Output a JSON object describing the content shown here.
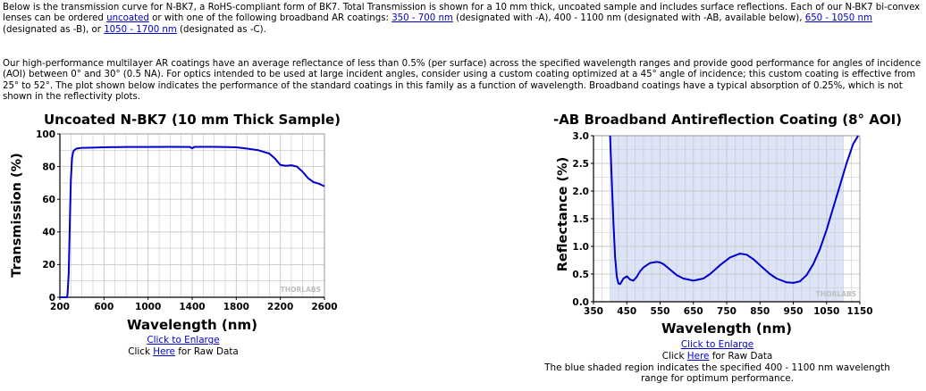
{
  "intro": {
    "p1_a": "Below is the transmission curve for N-BK7, a RoHS-compliant form of BK7. Total Transmission is shown for a 10 mm thick, uncoated sample and includes surface reflections. Each of our N-BK7 bi-convex lenses can be ordered ",
    "link_uncoated": "uncoated",
    "p1_b": " or with one of the following broadband AR coatings: ",
    "link_350_700": "350 - 700 nm",
    "p1_c": " (designated with -A), 400 - 1100 nm (designated with -AB, available below), ",
    "link_650_1050": "650 - 1050 nm",
    "p1_d": " (designated as -B), or ",
    "link_1050_1700": "1050 - 1700 nm",
    "p1_e": " (designated as -C).",
    "p2": "Our high-performance multilayer AR coatings have an average reflectance of less than 0.5% (per surface) across the specified wavelength ranges and provide good performance for angles of incidence (AOI) between 0° and 30° (0.5 NA). For optics intended to be used at large incident angles, consider using a custom coating optimized at a 45° angle of incidence; this custom coating is effective from 25° to 52°. The plot shown below indicates the performance of the standard coatings in this family as a function of wavelength. Broadband coatings have a typical absorption of 0.25%, which is not shown in the reflectivity plots."
  },
  "left": {
    "enlarge_link": "Click to Enlarge",
    "raw_prefix": "Click ",
    "raw_link": "Here",
    "raw_suffix": " for Raw Data"
  },
  "right": {
    "enlarge_link": "Click to Enlarge",
    "raw_prefix": "Click ",
    "raw_link": "Here",
    "raw_suffix": " for Raw Data",
    "note": "The blue shaded region indicates the specified 400 - 1100 nm wavelength range for optimum performance."
  },
  "colors": {
    "curve": "#0000cc",
    "shade": "#dde4f7",
    "grid": "#c8c8c8",
    "link": "#0000cc"
  },
  "chart_data": [
    {
      "type": "line",
      "title": "Uncoated N-BK7 (10 mm Thick Sample)",
      "xlabel": "Wavelength (nm)",
      "ylabel": "Transmission (%)",
      "xlim": [
        200,
        2600
      ],
      "ylim": [
        0,
        100
      ],
      "xticks": [
        200,
        600,
        1000,
        1400,
        1800,
        2200,
        2600
      ],
      "yticks": [
        0,
        20,
        40,
        60,
        80,
        100
      ],
      "xtick_labels": [
        "200",
        "600",
        "1000",
        "1400",
        "1800",
        "2200",
        "2600"
      ],
      "ytick_labels": [
        "0",
        "20",
        "40",
        "60",
        "80",
        "100"
      ],
      "grid": true,
      "watermark": "THORLABS",
      "series": [
        {
          "x": [
            200,
            250,
            265,
            270,
            280,
            290,
            300,
            310,
            320,
            330,
            350,
            380,
            400,
            500,
            600,
            800,
            1000,
            1200,
            1380,
            1400,
            1420,
            1600,
            1800,
            1900,
            2000,
            2100,
            2150,
            2200,
            2250,
            2300,
            2350,
            2400,
            2450,
            2500,
            2550,
            2600
          ],
          "y": [
            0,
            0,
            0,
            2,
            15,
            45,
            72,
            85,
            89,
            90,
            91,
            91.3,
            91.5,
            91.6,
            91.8,
            92,
            92,
            92.1,
            92,
            91.2,
            92.1,
            92.1,
            91.8,
            91,
            90,
            88,
            85,
            81,
            80.5,
            80.8,
            80,
            77,
            73,
            70.5,
            69.5,
            68
          ]
        }
      ]
    },
    {
      "type": "line",
      "title": "-AB Broadband Antireflection Coating (8° AOI)",
      "xlabel": "Wavelength (nm)",
      "ylabel": "Reflectance (%)",
      "xlim": [
        350,
        1150
      ],
      "ylim": [
        0,
        3
      ],
      "xticks": [
        350,
        450,
        550,
        650,
        750,
        850,
        950,
        1050,
        1150
      ],
      "yticks": [
        0,
        0.5,
        1,
        1.5,
        2,
        2.5,
        3
      ],
      "xtick_labels": [
        "350",
        "450",
        "550",
        "650",
        "750",
        "850",
        "950",
        "1050",
        "1150"
      ],
      "ytick_labels": [
        "0.0",
        "0.5",
        "1.0",
        "1.5",
        "2.0",
        "2.5",
        "3.0"
      ],
      "shaded_region": [
        400,
        1100
      ],
      "grid": true,
      "watermark": "THORLABS",
      "series": [
        {
          "x": [
            400,
            403,
            406,
            410,
            415,
            420,
            425,
            430,
            440,
            450,
            460,
            470,
            480,
            490,
            500,
            520,
            540,
            550,
            560,
            580,
            600,
            620,
            650,
            680,
            700,
            730,
            760,
            790,
            810,
            830,
            850,
            880,
            900,
            930,
            950,
            970,
            990,
            1010,
            1030,
            1050,
            1070,
            1090,
            1110,
            1130,
            1145
          ],
          "y": [
            3.0,
            2.5,
            2.0,
            1.4,
            0.8,
            0.45,
            0.33,
            0.32,
            0.42,
            0.46,
            0.4,
            0.38,
            0.45,
            0.55,
            0.62,
            0.7,
            0.72,
            0.71,
            0.68,
            0.58,
            0.48,
            0.42,
            0.38,
            0.42,
            0.5,
            0.66,
            0.8,
            0.87,
            0.85,
            0.77,
            0.66,
            0.5,
            0.42,
            0.35,
            0.34,
            0.37,
            0.48,
            0.68,
            0.95,
            1.3,
            1.7,
            2.1,
            2.5,
            2.85,
            3.0
          ]
        }
      ]
    }
  ]
}
